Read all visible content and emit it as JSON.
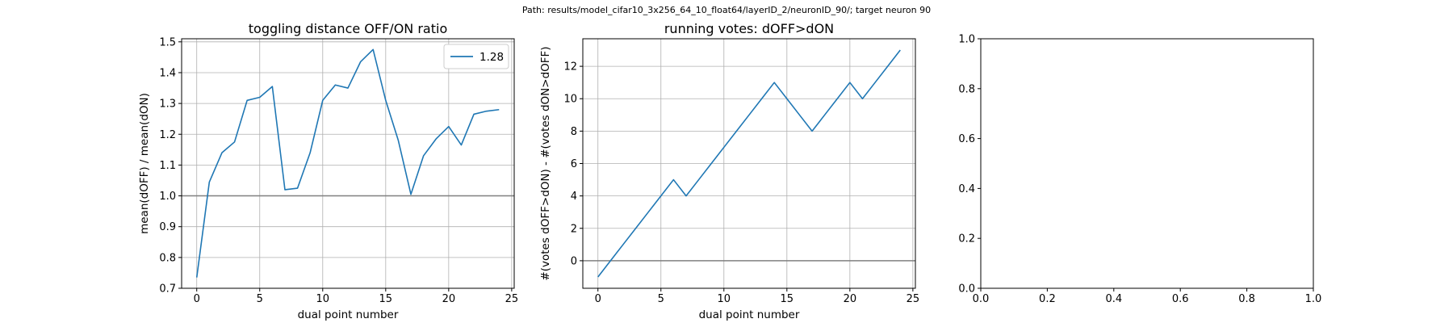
{
  "suptitle": "Path: results/model_cifar10_3x256_64_10_float64/layerID_2/neuronID_90/; target neuron 90",
  "colors": {
    "line": "#1f77b4",
    "hline": "#808080",
    "grid": "#b0b0b0",
    "axis": "#000000"
  },
  "chart_data": [
    {
      "type": "line",
      "title": "toggling distance OFF/ON ratio",
      "xlabel": "dual point number",
      "ylabel": "mean(dOFF) / mean(dON)",
      "xlim": [
        -1.2,
        25.2
      ],
      "ylim": [
        0.7,
        1.51
      ],
      "xticks": [
        0,
        5,
        10,
        15,
        20,
        25
      ],
      "yticks": [
        0.7,
        0.8,
        0.9,
        1.0,
        1.1,
        1.2,
        1.3,
        1.4,
        1.5
      ],
      "ytick_labels": [
        "0.7",
        "0.8",
        "0.9",
        "1.0",
        "1.1",
        "1.2",
        "1.3",
        "1.4",
        "1.5"
      ],
      "grid": true,
      "hline": 1.0,
      "legend": {
        "position": "top-right",
        "entries": [
          "1.28"
        ]
      },
      "series": [
        {
          "name": "1.28",
          "x": [
            0,
            1,
            2,
            3,
            4,
            5,
            6,
            7,
            8,
            9,
            10,
            11,
            12,
            13,
            14,
            15,
            16,
            17,
            18,
            19,
            20,
            21,
            22,
            23,
            24
          ],
          "y": [
            0.735,
            1.045,
            1.14,
            1.175,
            1.31,
            1.32,
            1.355,
            1.02,
            1.025,
            1.14,
            1.31,
            1.36,
            1.35,
            1.435,
            1.475,
            1.31,
            1.18,
            1.005,
            1.13,
            1.185,
            1.225,
            1.165,
            1.265,
            1.275,
            1.28
          ]
        }
      ]
    },
    {
      "type": "line",
      "title": "running votes: dOFF>dON",
      "xlabel": "dual point number",
      "ylabel": "#(votes dOFF>dON) - #(votes dON>dOFF)",
      "xlim": [
        -1.2,
        25.2
      ],
      "ylim": [
        -1.7,
        13.7
      ],
      "xticks": [
        0,
        5,
        10,
        15,
        20,
        25
      ],
      "yticks": [
        0,
        2,
        4,
        6,
        8,
        10,
        12
      ],
      "ytick_labels": [
        "0",
        "2",
        "4",
        "6",
        "8",
        "10",
        "12"
      ],
      "grid": true,
      "hline": 0,
      "series": [
        {
          "x": [
            0,
            1,
            2,
            3,
            4,
            5,
            6,
            7,
            8,
            9,
            10,
            11,
            12,
            13,
            14,
            15,
            16,
            17,
            18,
            19,
            20,
            21,
            22,
            23,
            24
          ],
          "y": [
            -1,
            0,
            1,
            2,
            3,
            4,
            5,
            4,
            5,
            6,
            7,
            8,
            9,
            10,
            11,
            10,
            9,
            8,
            9,
            10,
            11,
            10,
            11,
            12,
            13
          ]
        }
      ]
    },
    {
      "type": "line",
      "title": "",
      "xlabel": "",
      "ylabel": "",
      "xlim": [
        0,
        1
      ],
      "ylim": [
        0,
        1
      ],
      "xticks": [
        0,
        0.2,
        0.4,
        0.6,
        0.8,
        1.0
      ],
      "xtick_labels": [
        "0.0",
        "0.2",
        "0.4",
        "0.6",
        "0.8",
        "1.0"
      ],
      "yticks": [
        0,
        0.2,
        0.4,
        0.6,
        0.8,
        1.0
      ],
      "ytick_labels": [
        "0.0",
        "0.2",
        "0.4",
        "0.6",
        "0.8",
        "1.0"
      ],
      "grid": false,
      "series": []
    }
  ]
}
